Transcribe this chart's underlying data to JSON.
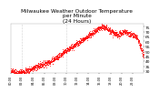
{
  "title": "Milwaukee Weather Outdoor Temperature\nper Minute\n(24 Hours)",
  "title_fontsize": 4.2,
  "bg_color": "#ffffff",
  "text_color": "#000000",
  "dot_color": "#ff0000",
  "dot_size": 0.3,
  "y_min": 28,
  "y_max": 78,
  "yticks": [
    30,
    35,
    40,
    45,
    50,
    55,
    60,
    65,
    70,
    75
  ],
  "ytick_fontsize": 3.2,
  "xtick_fontsize": 2.5,
  "num_points": 1440,
  "vline_x1": 120,
  "vline_x2": 600,
  "grid_color": "#aaaaaa",
  "vline_color": "#aaaaaa"
}
